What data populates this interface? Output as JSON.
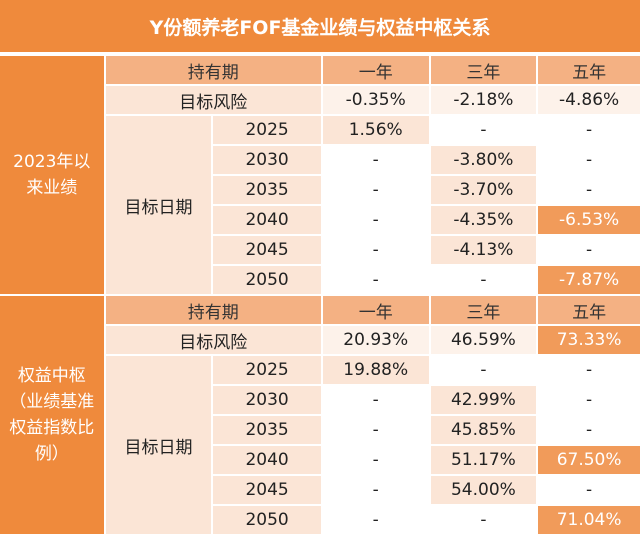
{
  "title": "Y份额养老FOF基金业绩与权益中枢关系",
  "colors": {
    "accent": "#ef8a3c",
    "header": "#f4b183",
    "light": "#fbe5d6",
    "pale": "#fdf2ea",
    "highlight": "#f19b5a"
  },
  "sections": {
    "performance": {
      "label": "2023年以来业绩",
      "header": {
        "holding_period": "持有期",
        "y1": "一年",
        "y3": "三年",
        "y5": "五年"
      },
      "risk": {
        "label": "目标风险",
        "y1": "-0.35%",
        "y3": "-2.18%",
        "y5": "-4.86%"
      },
      "date_label": "目标日期",
      "rows": [
        {
          "year": "2025",
          "y1": "1.56%",
          "y3": "-",
          "y5": "-"
        },
        {
          "year": "2030",
          "y1": "-",
          "y3": "-3.80%",
          "y5": "-"
        },
        {
          "year": "2035",
          "y1": "-",
          "y3": "-3.70%",
          "y5": "-"
        },
        {
          "year": "2040",
          "y1": "-",
          "y3": "-4.35%",
          "y5": "-6.53%"
        },
        {
          "year": "2045",
          "y1": "-",
          "y3": "-4.13%",
          "y5": "-"
        },
        {
          "year": "2050",
          "y1": "-",
          "y3": "-",
          "y5": "-7.87%"
        }
      ]
    },
    "equity": {
      "label": "权益中枢（业绩基准权益指数比例）",
      "header": {
        "holding_period": "持有期",
        "y1": "一年",
        "y3": "三年",
        "y5": "五年"
      },
      "risk": {
        "label": "目标风险",
        "y1": "20.93%",
        "y3": "46.59%",
        "y5": "73.33%"
      },
      "date_label": "目标日期",
      "rows": [
        {
          "year": "2025",
          "y1": "19.88%",
          "y3": "-",
          "y5": "-"
        },
        {
          "year": "2030",
          "y1": "-",
          "y3": "42.99%",
          "y5": "-"
        },
        {
          "year": "2035",
          "y1": "-",
          "y3": "45.85%",
          "y5": "-"
        },
        {
          "year": "2040",
          "y1": "-",
          "y3": "51.17%",
          "y5": "67.50%"
        },
        {
          "year": "2045",
          "y1": "-",
          "y3": "54.00%",
          "y5": "-"
        },
        {
          "year": "2050",
          "y1": "-",
          "y3": "-",
          "y5": "71.04%"
        }
      ]
    }
  }
}
